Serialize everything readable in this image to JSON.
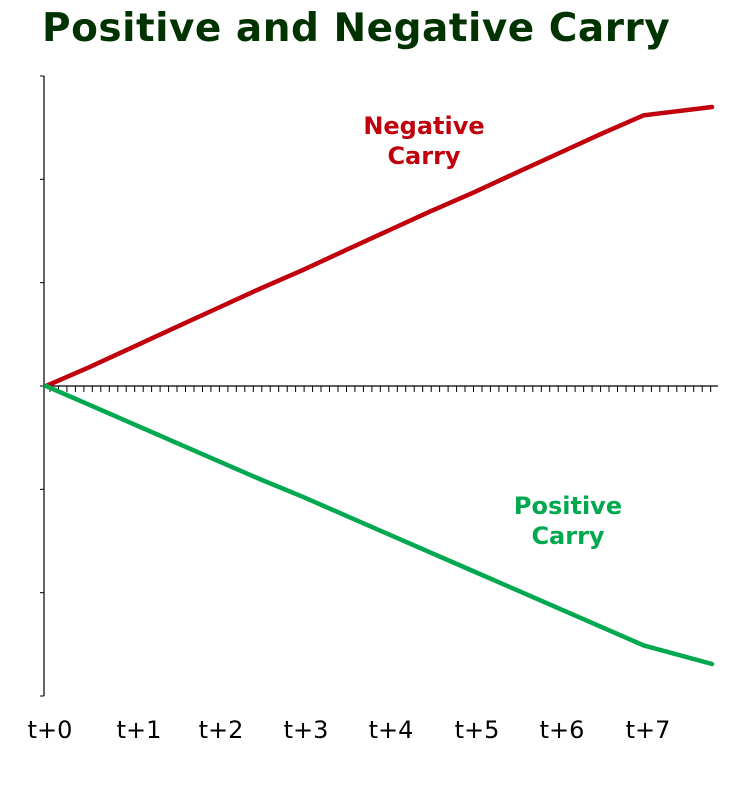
{
  "title": "Positive and Negative Carry",
  "colors": {
    "title": "#003300",
    "axis": "#000000",
    "negative": "#c0000c",
    "positive": "#00a94f"
  },
  "chart_data": {
    "type": "line",
    "title": "Positive and Negative Carry",
    "xlabel": "",
    "ylabel": "",
    "x_tick_labels": [
      "t+0",
      "t+1",
      "t+2",
      "t+3",
      "t+4",
      "t+5",
      "t+6",
      "t+7"
    ],
    "xlim": [
      0,
      7.8
    ],
    "ylim": [
      -3,
      3
    ],
    "y_tick_count": 6,
    "grid": false,
    "legend": "none",
    "series": [
      {
        "name": "Negative\nCarry",
        "label_lines": [
          "Negative",
          "Carry"
        ],
        "color": "#c0000c",
        "x": [
          0,
          0.5,
          1,
          1.5,
          2,
          2.5,
          3,
          3.5,
          4,
          4.5,
          5,
          5.5,
          6,
          6.5,
          7,
          7.8
        ],
        "y": [
          0,
          0.18,
          0.37,
          0.56,
          0.75,
          0.94,
          1.12,
          1.31,
          1.5,
          1.69,
          1.87,
          2.06,
          2.25,
          2.44,
          2.62,
          2.7
        ]
      },
      {
        "name": "Positive\nCarry",
        "label_lines": [
          "Positive",
          "Carry"
        ],
        "color": "#00a94f",
        "x": [
          0,
          0.5,
          1,
          1.5,
          2,
          2.5,
          3,
          3.5,
          4,
          4.5,
          5,
          5.5,
          6,
          6.5,
          7,
          7.8
        ],
        "y": [
          0,
          -0.18,
          -0.36,
          -0.54,
          -0.72,
          -0.9,
          -1.07,
          -1.25,
          -1.43,
          -1.61,
          -1.79,
          -1.97,
          -2.15,
          -2.33,
          -2.51,
          -2.69
        ]
      }
    ]
  }
}
